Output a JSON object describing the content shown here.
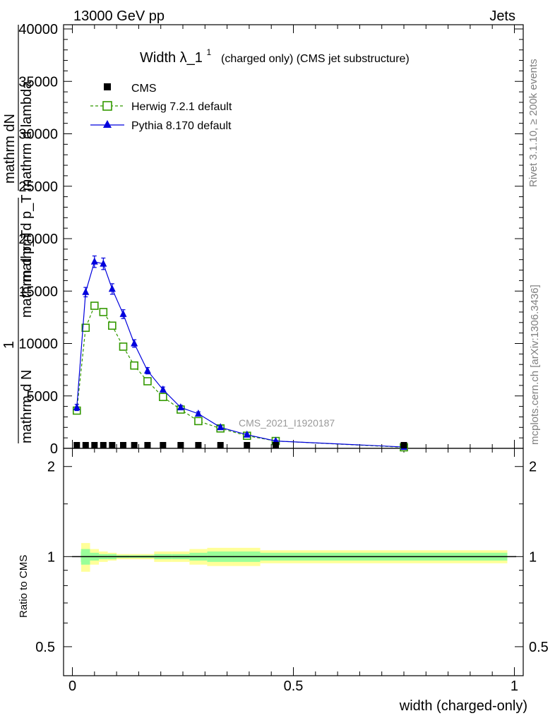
{
  "header": {
    "energy_label": "13000 GeV pp",
    "process_label": "Jets"
  },
  "side_labels": {
    "rivet_label": "Rivet 3.1.10, ≥ 200k events",
    "mcplots_label": "mcplots.cern.ch [arXiv:1306.3436]"
  },
  "chart_data": {
    "type": "line",
    "title": "Width λ_1",
    "title_sup": "1",
    "subtitle": "(charged only) (CMS jet substructure)",
    "analysis_tag": "CMS_2021_I1920187",
    "xlabel": "width (charged-only)",
    "ylabel_lines": [
      "mathrm dN",
      "mathrm d p_T mathrm d lambda",
      "mathrm d p_T",
      "mathrm d N",
      "1"
    ],
    "ylim": [
      0,
      40000
    ],
    "xlim": [
      -0.02,
      1.02
    ],
    "y_ticks": [
      0,
      5000,
      10000,
      15000,
      20000,
      25000,
      30000,
      35000,
      40000
    ],
    "y_tick_labels": [
      "0",
      "5000",
      "10000",
      "15000",
      "20000",
      "25000",
      "30000",
      "35000",
      "40000"
    ],
    "x_ticks": [
      0,
      0.5,
      1
    ],
    "x_tick_labels": [
      "0",
      "0.5",
      "1"
    ],
    "legend_position": "top-left",
    "series": [
      {
        "name": "CMS",
        "marker": "square-filled",
        "color": "#000000",
        "x": [
          0.01,
          0.03,
          0.05,
          0.07,
          0.09,
          0.115,
          0.14,
          0.17,
          0.205,
          0.245,
          0.285,
          0.335,
          0.395,
          0.46,
          0.75
        ],
        "y": [
          90,
          100,
          110,
          105,
          95,
          85,
          75,
          65,
          55,
          45,
          35,
          28,
          20,
          12,
          4
        ]
      },
      {
        "name": "Herwig 7.2.1 default",
        "marker": "square-open",
        "color": "#339900",
        "dashed": true,
        "x": [
          0.01,
          0.03,
          0.05,
          0.07,
          0.09,
          0.115,
          0.14,
          0.17,
          0.205,
          0.245,
          0.285,
          0.335,
          0.395,
          0.46,
          0.75
        ],
        "y": [
          3600,
          11500,
          13600,
          13000,
          11700,
          9700,
          7900,
          6400,
          4900,
          3700,
          2600,
          1900,
          1200,
          700,
          100
        ]
      },
      {
        "name": "Pythia 8.170 default",
        "marker": "triangle-filled",
        "color": "#0000dd",
        "dashed": false,
        "x": [
          0.01,
          0.03,
          0.05,
          0.07,
          0.09,
          0.115,
          0.14,
          0.17,
          0.205,
          0.245,
          0.285,
          0.335,
          0.395,
          0.46,
          0.75
        ],
        "y": [
          3900,
          14900,
          17800,
          17600,
          15200,
          12800,
          10000,
          7400,
          5600,
          3900,
          3300,
          2000,
          1300,
          700,
          130
        ],
        "err": [
          300,
          450,
          550,
          550,
          500,
          420,
          360,
          300,
          250,
          200,
          180,
          140,
          110,
          80,
          40
        ]
      }
    ],
    "ratio": {
      "ylabel": "Ratio to CMS",
      "ylim": [
        0.4,
        2.3
      ],
      "y_ticks": [
        0.5,
        1,
        2
      ],
      "y_tick_labels": [
        "0.5",
        "1",
        "2"
      ],
      "reference": 1,
      "band_edges": [
        0.0,
        0.02,
        0.04,
        0.06,
        0.08,
        0.1,
        0.13,
        0.155,
        0.185,
        0.225,
        0.265,
        0.305,
        0.365,
        0.425,
        1.0
      ],
      "band_inner": [
        0.04,
        0.06,
        0.03,
        0.02,
        0.02,
        0.01,
        0.01,
        0.01,
        0.02,
        0.02,
        0.03,
        0.04,
        0.04,
        0.03
      ],
      "band_outer": [
        0.06,
        0.11,
        0.06,
        0.04,
        0.03,
        0.02,
        0.02,
        0.02,
        0.04,
        0.04,
        0.06,
        0.07,
        0.07,
        0.05
      ]
    }
  }
}
